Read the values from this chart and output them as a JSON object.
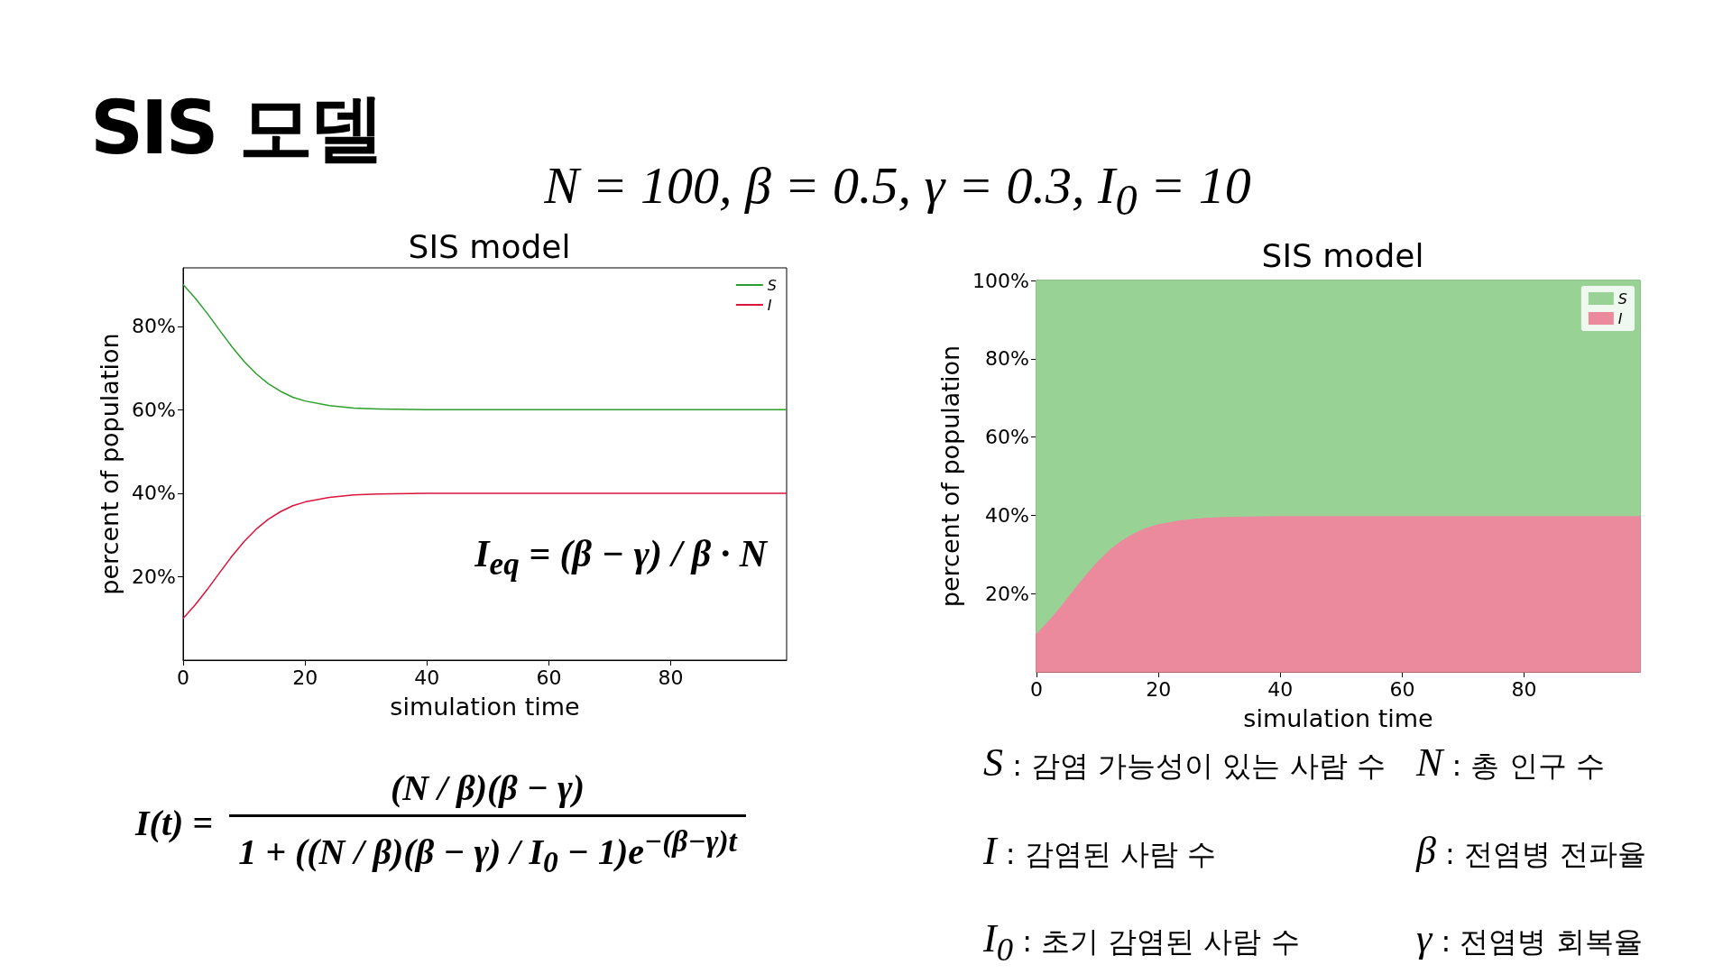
{
  "chart_data": [
    {
      "type": "line",
      "title": "SIS model",
      "xlabel": "simulation time",
      "ylabel": "percent of population",
      "x": [
        0,
        2,
        4,
        6,
        8,
        10,
        12,
        14,
        16,
        18,
        20,
        24,
        28,
        32,
        40,
        60,
        80,
        99
      ],
      "series": [
        {
          "name": "S",
          "color": "#2ca02c",
          "values": [
            90.0,
            86.7,
            83.0,
            79.0,
            75.1,
            71.6,
            68.6,
            66.2,
            64.4,
            63.0,
            62.1,
            61.0,
            60.4,
            60.2,
            60.0,
            60.0,
            60.0,
            60.0
          ]
        },
        {
          "name": "I",
          "color": "#dc143c",
          "values": [
            10.0,
            13.3,
            17.0,
            21.0,
            24.9,
            28.4,
            31.4,
            33.8,
            35.6,
            37.0,
            37.9,
            39.0,
            39.6,
            39.8,
            40.0,
            40.0,
            40.0,
            40.0
          ]
        }
      ],
      "xlim": [
        0,
        99
      ],
      "xticks": [
        0,
        20,
        40,
        60,
        80
      ],
      "ylim": [
        0,
        94
      ],
      "yticks": [
        {
          "value": 20,
          "label": "20%"
        },
        {
          "value": 40,
          "label": "40%"
        },
        {
          "value": 60,
          "label": "60%"
        },
        {
          "value": 80,
          "label": "80%"
        }
      ],
      "marker": "none",
      "line_style": "solid",
      "grid": false,
      "legend": "top right",
      "annotations": [
        "I$_{eq}$ = (β − γ) / β · N"
      ]
    },
    {
      "type": "area",
      "stacked": true,
      "title": "SIS model",
      "xlabel": "simulation time",
      "ylabel": "percent of population",
      "x": [
        0,
        2,
        4,
        6,
        8,
        10,
        12,
        14,
        16,
        18,
        20,
        24,
        28,
        32,
        40,
        60,
        80,
        99
      ],
      "series": [
        {
          "name": "I",
          "color": "#eb8a9c",
          "values": [
            10.0,
            13.3,
            17.0,
            21.0,
            24.9,
            28.4,
            31.4,
            33.8,
            35.6,
            37.0,
            37.9,
            39.0,
            39.6,
            39.8,
            40.0,
            40.0,
            40.0,
            40.0
          ]
        },
        {
          "name": "S",
          "color": "#98d395",
          "values": [
            90.0,
            86.7,
            83.0,
            79.0,
            75.1,
            71.6,
            68.6,
            66.2,
            64.4,
            63.0,
            62.1,
            61.0,
            60.4,
            60.2,
            60.0,
            60.0,
            60.0,
            60.0
          ]
        }
      ],
      "xlim": [
        0,
        99
      ],
      "xticks": [
        0,
        20,
        40,
        60,
        80
      ],
      "ylim": [
        0,
        100
      ],
      "yticks": [
        {
          "value": 20,
          "label": "20%"
        },
        {
          "value": 40,
          "label": "40%"
        },
        {
          "value": 60,
          "label": "60%"
        },
        {
          "value": 80,
          "label": "80%"
        },
        {
          "value": 100,
          "label": "100%"
        }
      ],
      "grid": false,
      "legend": "top right"
    },
    {
      "type": "other",
      "title": "SIS 모델",
      "subtitle": "N = 100,  β = 0.5,  γ = 0.3,  I$_{0}$ = 10",
      "annotations": [
        "I(t) =",
        "(N / β)(β − γ)",
        "1 + ((N / β)(β − γ) / I$_{0}$ − 1)e$^{−(β−γ)t}$",
        "S : 감염 가능성이 있는 사람 수",
        "N : 총 인구 수",
        "I : 감염된 사람 수",
        "β : 전염병 전파율",
        "I$_{0}$ : 초기 감염된 사람 수",
        "γ : 전염병 회복율"
      ]
    }
  ]
}
